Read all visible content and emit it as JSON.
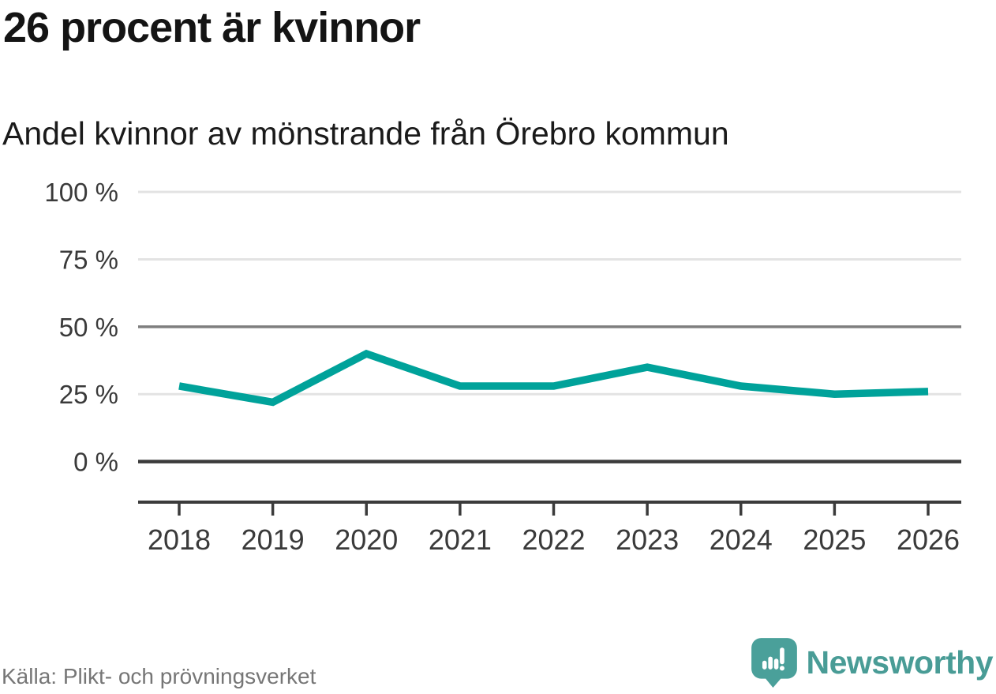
{
  "header": {
    "title": "26 procent är kvinnor",
    "subtitle": "Andel kvinnor av mönstrande från Örebro kommun"
  },
  "chart_data": {
    "type": "line",
    "title": "26 procent är kvinnor",
    "subtitle": "Andel kvinnor av mönstrande från Örebro kommun",
    "categories": [
      "2018",
      "2019",
      "2020",
      "2021",
      "2022",
      "2023",
      "2024",
      "2025",
      "2026"
    ],
    "series": [
      {
        "name": "Andel kvinnor av mönstrande",
        "values": [
          28,
          22,
          40,
          28,
          28,
          35,
          28,
          25,
          26
        ]
      }
    ],
    "unit": "%",
    "ylim": [
      0,
      100
    ],
    "yticks": [
      0,
      25,
      50,
      75,
      100
    ],
    "ytick_labels": [
      "0 %",
      "25 %",
      "50 %",
      "75 %",
      "100 %"
    ],
    "grid": true,
    "legend": "none",
    "line_color": "#00a29a"
  },
  "colors": {
    "line": "#00a29a",
    "grid_light": "#e3e3e3",
    "grid_mid": "#7e7e7e",
    "axis_dark": "#3b3b3b",
    "tick_text": "#3a3a3a",
    "brand_teal": "#499c96"
  },
  "footer": {
    "source": "Källa: Plikt- och prövningsverket",
    "brand": "Newsworthy"
  }
}
